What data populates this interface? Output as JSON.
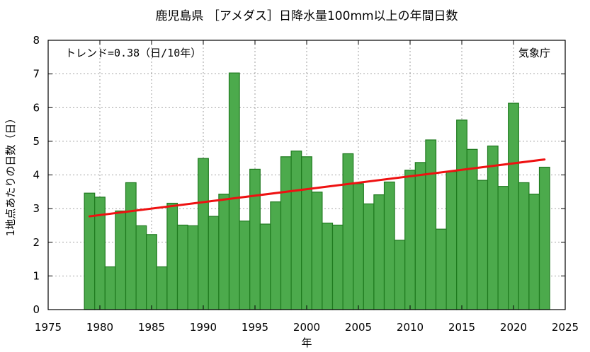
{
  "chart_data": {
    "type": "bar",
    "title": "鹿児島県 ［アメダス］日降水量100mm以上の年間日数",
    "xlabel": "年",
    "ylabel": "1地点あたりの日数（日）",
    "x_ticks": [
      1975,
      1980,
      1985,
      1990,
      1995,
      2000,
      2005,
      2010,
      2015,
      2020,
      2025
    ],
    "y_ticks": [
      0,
      1,
      2,
      3,
      4,
      5,
      6,
      7,
      8
    ],
    "xlim": [
      1975,
      2025
    ],
    "ylim": [
      0,
      8
    ],
    "grid": true,
    "trend_label": "トレンド=0.38（日/10年）",
    "credit": "気象庁",
    "colors": {
      "bar_fill": "#4caa4c",
      "bar_stroke": "#1f7a1f",
      "trend": "#ee1111",
      "grid": "#888888"
    },
    "years": [
      1979,
      1980,
      1981,
      1982,
      1983,
      1984,
      1985,
      1986,
      1987,
      1988,
      1989,
      1990,
      1991,
      1992,
      1993,
      1994,
      1995,
      1996,
      1997,
      1998,
      1999,
      2000,
      2001,
      2002,
      2003,
      2004,
      2005,
      2006,
      2007,
      2008,
      2009,
      2010,
      2011,
      2012,
      2013,
      2014,
      2015,
      2016,
      2017,
      2018,
      2019,
      2020,
      2021,
      2022,
      2023
    ],
    "values": [
      3.46,
      3.34,
      1.27,
      2.93,
      3.77,
      2.49,
      2.23,
      1.27,
      3.16,
      2.51,
      2.49,
      4.49,
      2.77,
      3.43,
      7.03,
      2.63,
      4.17,
      2.54,
      3.2,
      4.54,
      4.71,
      4.54,
      3.49,
      2.57,
      2.51,
      4.63,
      3.74,
      3.14,
      3.41,
      3.79,
      2.06,
      4.14,
      4.37,
      5.04,
      2.39,
      4.1,
      5.63,
      4.76,
      3.84,
      4.86,
      3.66,
      6.13,
      3.77,
      3.43,
      4.23
    ],
    "trend": {
      "x": [
        1979,
        2023
      ],
      "y": [
        2.77,
        4.46
      ]
    }
  }
}
